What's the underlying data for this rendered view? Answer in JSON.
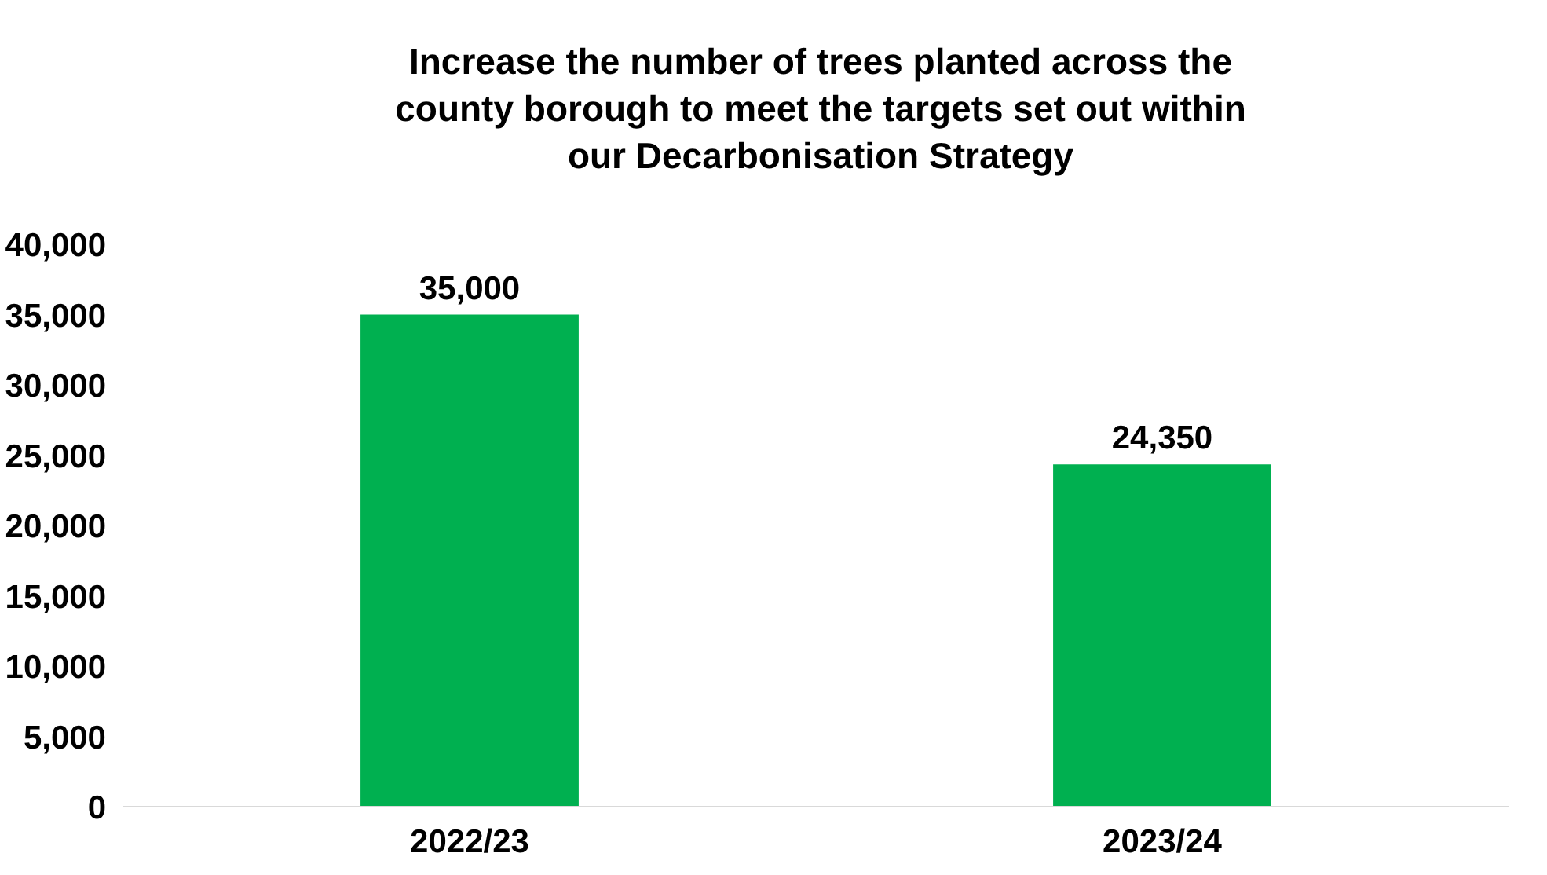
{
  "chart_data": {
    "type": "bar",
    "title": "Increase the number of trees planted across the county borough to meet the targets set out within our Decarbonisation Strategy",
    "categories": [
      "2022/23",
      "2023/24"
    ],
    "values": [
      35000,
      24350
    ],
    "color": "#00b050",
    "ylim": [
      0,
      40000
    ],
    "yticks": [
      {
        "value": 0,
        "label": "0"
      },
      {
        "value": 5000,
        "label": "5,000"
      },
      {
        "value": 10000,
        "label": "10,000"
      },
      {
        "value": 15000,
        "label": "15,000"
      },
      {
        "value": 20000,
        "label": "20,000"
      },
      {
        "value": 25000,
        "label": "25,000"
      },
      {
        "value": 30000,
        "label": "30,000"
      },
      {
        "value": 35000,
        "label": "35,000"
      },
      {
        "value": 40000,
        "label": "40,000"
      }
    ],
    "value_labels": [
      "35,000",
      "24,350"
    ],
    "grid": false
  }
}
